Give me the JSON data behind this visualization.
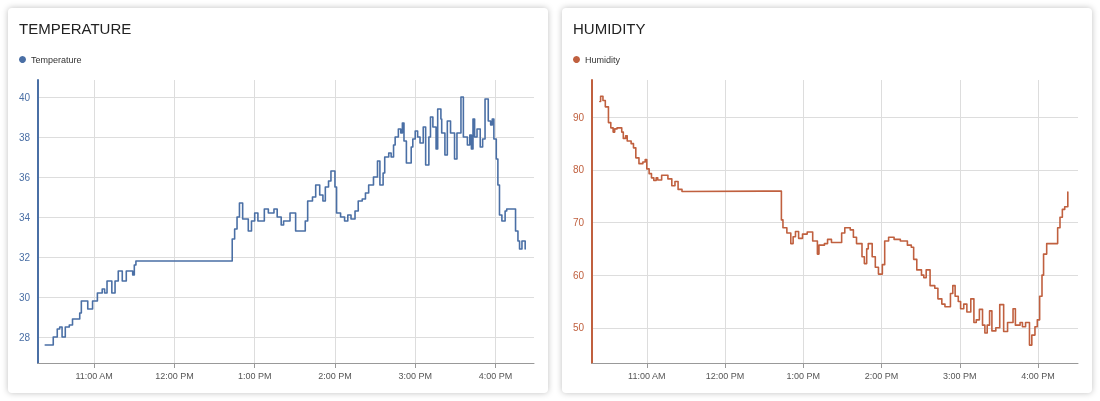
{
  "chart_data": [
    {
      "type": "step",
      "title": "TEMPERATURE",
      "legend": "top left",
      "grid": true,
      "xlim": [
        10.3,
        16.48
      ],
      "ylim": [
        26.7,
        40.85
      ],
      "xticks": [
        {
          "value": 11,
          "label": "11:00 AM"
        },
        {
          "value": 12,
          "label": "12:00 PM"
        },
        {
          "value": 13,
          "label": "1:00 PM"
        },
        {
          "value": 14,
          "label": "2:00 PM"
        },
        {
          "value": 15,
          "label": "3:00 PM"
        },
        {
          "value": 16,
          "label": "4:00 PM"
        }
      ],
      "yticks": [
        28,
        30,
        32,
        34,
        36,
        38,
        40
      ],
      "series": [
        {
          "name": "Temperature",
          "color": "#4a6fa5",
          "x": [
            10.39,
            10.49,
            10.54,
            10.57,
            10.6,
            10.64,
            10.69,
            10.73,
            10.82,
            10.84,
            10.92,
            10.98,
            11.04,
            11.1,
            11.13,
            11.16,
            11.22,
            11.26,
            11.3,
            11.35,
            11.4,
            11.48,
            11.5,
            11.52,
            12.72,
            12.75,
            12.78,
            12.81,
            12.85,
            12.92,
            12.96,
            13.0,
            13.04,
            13.12,
            13.17,
            13.24,
            13.28,
            13.33,
            13.36,
            13.44,
            13.51,
            13.63,
            13.66,
            13.72,
            13.76,
            13.81,
            13.85,
            13.88,
            13.92,
            13.95,
            14.0,
            14.02,
            14.07,
            14.12,
            14.16,
            14.2,
            14.25,
            14.29,
            14.34,
            14.38,
            14.42,
            14.48,
            14.53,
            14.56,
            14.6,
            14.62,
            14.67,
            14.7,
            14.73,
            14.75,
            14.79,
            14.82,
            14.84,
            14.86,
            14.89,
            14.93,
            14.95,
            14.97,
            15.0,
            15.03,
            15.06,
            15.1,
            15.13,
            15.17,
            15.19,
            15.22,
            15.26,
            15.28,
            15.32,
            15.33,
            15.37,
            15.4,
            15.44,
            15.49,
            15.52,
            15.57,
            15.6,
            15.65,
            15.68,
            15.7,
            15.72,
            15.74,
            15.77,
            15.81,
            15.84,
            15.87,
            15.91,
            15.94,
            15.96,
            15.98,
            16.01,
            16.03,
            16.05,
            16.08,
            16.12,
            16.14,
            16.25,
            16.28,
            16.3,
            16.33,
            16.37
          ],
          "values": [
            27.6,
            28.0,
            28.4,
            28.5,
            28.0,
            28.5,
            28.6,
            28.9,
            29.2,
            29.8,
            29.4,
            29.8,
            30.2,
            30.4,
            30.2,
            30.8,
            30.2,
            30.8,
            31.3,
            30.8,
            31.3,
            31.1,
            31.6,
            31.8,
            32.9,
            33.4,
            34.0,
            34.7,
            33.9,
            33.3,
            33.8,
            34.2,
            33.8,
            34.4,
            34.2,
            34.4,
            34.0,
            33.6,
            33.8,
            34.2,
            33.3,
            33.8,
            34.8,
            35.0,
            35.6,
            35.1,
            34.8,
            35.5,
            35.8,
            36.3,
            35.5,
            34.2,
            34.0,
            33.8,
            34.1,
            33.9,
            34.3,
            34.8,
            34.9,
            35.2,
            35.6,
            36.0,
            36.8,
            35.6,
            36.2,
            37.0,
            37.2,
            37.0,
            37.6,
            38.0,
            38.4,
            38.2,
            38.7,
            37.8,
            36.7,
            36.7,
            37.5,
            37.9,
            38.3,
            38.0,
            37.7,
            38.5,
            36.6,
            38.0,
            39.0,
            38.5,
            37.4,
            39.4,
            38.9,
            38.2,
            37.1,
            38.8,
            38.2,
            36.9,
            38.2,
            40.0,
            38.0,
            37.6,
            38.1,
            37.4,
            38.9,
            38.0,
            38.4,
            37.5,
            37.9,
            39.9,
            38.8,
            38.6,
            38.9,
            37.9,
            36.9,
            35.6,
            34.1,
            33.8,
            34.3,
            34.4,
            33.3,
            32.8,
            32.4,
            32.8,
            32.4
          ]
        }
      ]
    },
    {
      "type": "step",
      "title": "HUMIDITY",
      "legend": "top left",
      "grid": true,
      "xlim": [
        10.3,
        16.51
      ],
      "ylim": [
        43.3,
        97.1
      ],
      "xticks": [
        {
          "value": 11,
          "label": "11:00 AM"
        },
        {
          "value": 12,
          "label": "12:00 PM"
        },
        {
          "value": 13,
          "label": "1:00 PM"
        },
        {
          "value": 14,
          "label": "2:00 PM"
        },
        {
          "value": 15,
          "label": "3:00 PM"
        },
        {
          "value": 16,
          "label": "4:00 PM"
        }
      ],
      "yticks": [
        50,
        60,
        70,
        80,
        90
      ],
      "series": [
        {
          "name": "Humidity",
          "color": "#c0603f",
          "x": [
            10.4,
            10.41,
            10.44,
            10.47,
            10.51,
            10.54,
            10.57,
            10.59,
            10.62,
            10.68,
            10.7,
            10.73,
            10.75,
            10.8,
            10.83,
            10.86,
            10.9,
            10.95,
            10.98,
            11.0,
            11.03,
            11.06,
            11.09,
            11.12,
            11.14,
            11.19,
            11.27,
            11.32,
            11.36,
            11.4,
            11.45,
            11.49,
            12.72,
            12.74,
            12.79,
            12.84,
            12.87,
            12.9,
            12.94,
            12.99,
            13.05,
            13.12,
            13.18,
            13.2,
            13.27,
            13.31,
            13.36,
            13.49,
            13.53,
            13.6,
            13.64,
            13.68,
            13.75,
            13.78,
            13.81,
            13.83,
            13.88,
            13.92,
            13.96,
            14.01,
            14.04,
            14.09,
            14.16,
            14.24,
            14.33,
            14.38,
            14.41,
            14.45,
            14.51,
            14.54,
            14.57,
            14.62,
            14.68,
            14.72,
            14.77,
            14.81,
            14.88,
            14.91,
            14.94,
            14.98,
            15.01,
            15.05,
            15.09,
            15.14,
            15.18,
            15.21,
            15.25,
            15.29,
            15.32,
            15.35,
            15.38,
            15.41,
            15.46,
            15.51,
            15.56,
            15.61,
            15.68,
            15.71,
            15.77,
            15.8,
            15.84,
            15.89,
            15.92,
            15.96,
            15.99,
            16.02,
            16.05,
            16.07,
            16.11,
            16.25,
            16.28,
            16.31,
            16.34,
            16.38
          ],
          "values": [
            93,
            94,
            93.2,
            92,
            89,
            88,
            87.2,
            87.8,
            88,
            87.2,
            86,
            86.5,
            85.5,
            85,
            84.2,
            82.3,
            81.2,
            81.5,
            82,
            80.2,
            79.3,
            78.5,
            78,
            78.5,
            78.1,
            79,
            78.3,
            77,
            77.8,
            76.3,
            75.9,
            76,
            70.5,
            69,
            68,
            66,
            67.3,
            68.3,
            67,
            67.8,
            68.2,
            66.5,
            64,
            65.7,
            66,
            66.8,
            66.2,
            68,
            69,
            68.6,
            67.2,
            66,
            63.5,
            62.2,
            65,
            66,
            63.5,
            61.5,
            60.2,
            62,
            66.5,
            67.2,
            66.8,
            66.5,
            65.7,
            65.3,
            63,
            61,
            60,
            59.5,
            61,
            58,
            57.5,
            55.5,
            54.5,
            54,
            56.5,
            58,
            56,
            55,
            53.6,
            54.5,
            53,
            55.5,
            51,
            51.5,
            53.5,
            50.5,
            49,
            50.5,
            53.2,
            49.4,
            50,
            54.4,
            49.3,
            51,
            53.6,
            50.5,
            51,
            50.2,
            51,
            46.7,
            48.6,
            50.2,
            51.5,
            56,
            60,
            64,
            66,
            69,
            71,
            72.5,
            73,
            75.8
          ]
        }
      ]
    }
  ]
}
